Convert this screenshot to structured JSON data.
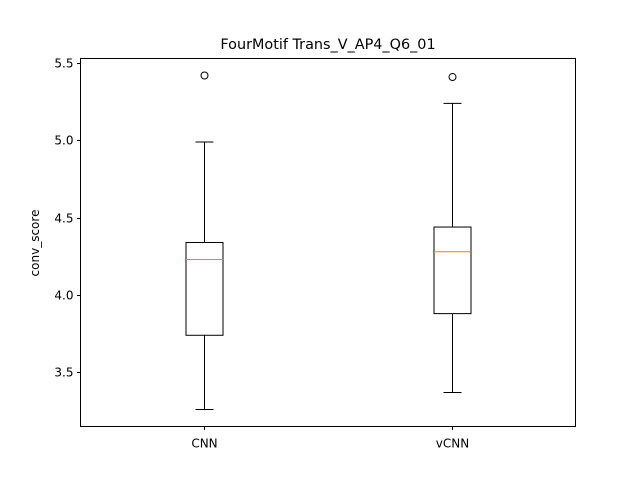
{
  "chart_data": {
    "type": "box",
    "title": "FourMotif Trans_V_AP4_Q6_01",
    "xlabel": "",
    "ylabel": "conv_score",
    "ylim": [
      3.15,
      5.53
    ],
    "yticks": [
      3.5,
      4.0,
      4.5,
      5.0,
      5.5
    ],
    "ytick_labels": [
      "3.5",
      "4.0",
      "4.5",
      "5.0",
      "5.5"
    ],
    "grid": false,
    "categories": [
      "CNN",
      "vCNN"
    ],
    "boxes": [
      {
        "category": "CNN",
        "whisker_low": 3.26,
        "q1": 3.74,
        "median": 4.23,
        "q3": 4.34,
        "whisker_high": 4.99,
        "outliers": [
          5.42
        ]
      },
      {
        "category": "vCNN",
        "whisker_low": 3.37,
        "q1": 3.88,
        "median": 4.28,
        "q3": 4.44,
        "whisker_high": 5.24,
        "outliers": [
          5.41
        ]
      }
    ],
    "colors": {
      "box": "#000000",
      "median": "#ff7f0e",
      "outlier": "#000000"
    }
  }
}
